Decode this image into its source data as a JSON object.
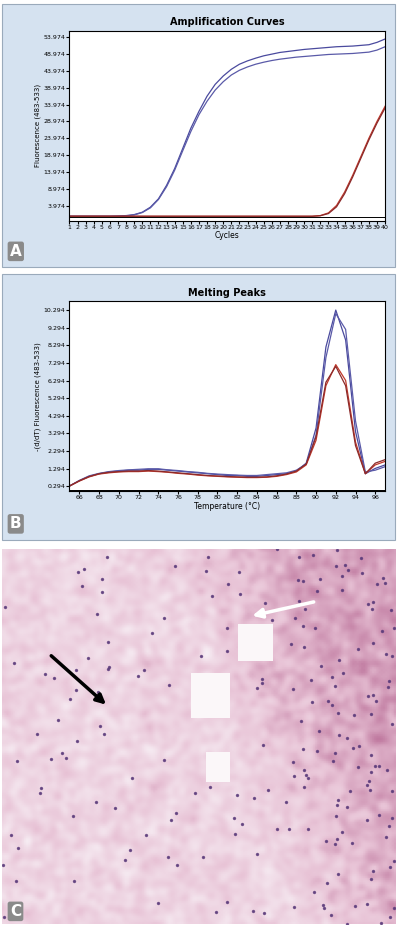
{
  "chart_data": [
    {
      "type": "line",
      "title": "Amplification Curves",
      "x_label": "Cycles",
      "y_label": "Fluorescence (483-533)",
      "annotations": [
        "A"
      ],
      "x": [
        1,
        2,
        3,
        4,
        5,
        6,
        7,
        8,
        9,
        10,
        11,
        12,
        13,
        14,
        15,
        16,
        17,
        18,
        19,
        20,
        21,
        22,
        23,
        24,
        25,
        26,
        27,
        28,
        29,
        30,
        31,
        32,
        33,
        34,
        35,
        36,
        37,
        38,
        39,
        40
      ],
      "xlim": [
        1,
        40
      ],
      "xticks": [
        1,
        2,
        3,
        4,
        5,
        6,
        7,
        8,
        9,
        10,
        11,
        12,
        13,
        14,
        15,
        16,
        17,
        18,
        19,
        20,
        21,
        22,
        23,
        24,
        25,
        26,
        27,
        28,
        29,
        30,
        31,
        32,
        33,
        34,
        35,
        36,
        37,
        38,
        39,
        40
      ],
      "ylim": [
        -0.5,
        56
      ],
      "yticks": [
        3.974,
        8.974,
        13.974,
        18.974,
        23.974,
        28.974,
        33.974,
        38.974,
        43.974,
        48.974,
        53.974
      ],
      "baseline": 0.6,
      "series": [
        {
          "color": "#4a4a9e",
          "values": [
            0.8,
            0.8,
            0.8,
            0.8,
            0.8,
            0.8,
            0.9,
            1.0,
            1.3,
            2.0,
            3.5,
            6,
            10,
            15,
            21,
            27,
            32,
            36.5,
            40,
            42.5,
            44.5,
            46,
            47,
            47.8,
            48.5,
            49,
            49.5,
            49.8,
            50.1,
            50.4,
            50.6,
            50.8,
            51,
            51.2,
            51.3,
            51.4,
            51.6,
            51.8,
            52.5,
            53.5
          ]
        },
        {
          "color": "#5a5aa8",
          "values": [
            0.8,
            0.8,
            0.8,
            0.8,
            0.8,
            0.8,
            0.8,
            0.9,
            1.2,
            1.9,
            3.3,
            5.8,
            9.6,
            14.5,
            20.3,
            26,
            31,
            35,
            38.3,
            40.8,
            42.8,
            44.2,
            45.2,
            46,
            46.6,
            47.1,
            47.5,
            47.8,
            48.1,
            48.3,
            48.5,
            48.7,
            48.9,
            49,
            49.1,
            49.2,
            49.4,
            49.6,
            50.2,
            51.2
          ]
        },
        {
          "color": "#c0392b",
          "values": [
            0.8,
            0.8,
            0.8,
            0.8,
            0.8,
            0.8,
            0.8,
            0.8,
            0.8,
            0.8,
            0.8,
            0.8,
            0.8,
            0.8,
            0.8,
            0.8,
            0.8,
            0.8,
            0.8,
            0.8,
            0.8,
            0.8,
            0.8,
            0.8,
            0.8,
            0.8,
            0.8,
            0.8,
            0.8,
            0.8,
            0.8,
            1.0,
            1.8,
            4,
            8,
            13,
            18.5,
            24,
            29,
            33.5
          ]
        },
        {
          "color": "#8b2a2a",
          "values": [
            0.8,
            0.8,
            0.8,
            0.8,
            0.8,
            0.8,
            0.8,
            0.8,
            0.8,
            0.8,
            0.8,
            0.8,
            0.8,
            0.8,
            0.8,
            0.8,
            0.8,
            0.8,
            0.8,
            0.8,
            0.8,
            0.8,
            0.8,
            0.8,
            0.8,
            0.8,
            0.8,
            0.8,
            0.8,
            0.8,
            0.8,
            0.95,
            1.6,
            3.6,
            7.5,
            12.5,
            18,
            23.5,
            28.5,
            33
          ]
        }
      ]
    },
    {
      "type": "line",
      "title": "Melting Peaks",
      "x_label": "Temperature (°C)",
      "y_label": "-(d/dT) Fluorescence (483-533)",
      "annotations": [
        "B"
      ],
      "x": [
        65,
        66,
        67,
        68,
        69,
        70,
        71,
        72,
        73,
        74,
        75,
        76,
        77,
        78,
        79,
        80,
        81,
        82,
        83,
        84,
        85,
        86,
        87,
        88,
        89,
        90,
        91,
        92,
        93,
        94,
        95,
        96,
        97
      ],
      "xlim": [
        65,
        97
      ],
      "xticks": [
        66,
        68,
        70,
        72,
        74,
        76,
        78,
        80,
        82,
        84,
        86,
        88,
        90,
        92,
        94,
        96
      ],
      "ylim": [
        0,
        10.8
      ],
      "yticks": [
        0.294,
        1.294,
        2.294,
        3.294,
        4.294,
        5.294,
        6.294,
        7.294,
        8.294,
        9.294,
        10.294
      ],
      "baseline": 0.05,
      "series": [
        {
          "color": "#4a4a9e",
          "values": [
            0.3,
            0.6,
            0.85,
            1.0,
            1.1,
            1.15,
            1.2,
            1.2,
            1.25,
            1.25,
            1.2,
            1.15,
            1.1,
            1.05,
            1.0,
            0.95,
            0.9,
            0.9,
            0.85,
            0.85,
            0.9,
            0.95,
            1.0,
            1.15,
            1.6,
            3.6,
            8.2,
            10.3,
            8.6,
            3.4,
            1.0,
            1.3,
            1.5
          ]
        },
        {
          "color": "#5a5aa8",
          "values": [
            0.3,
            0.62,
            0.88,
            1.02,
            1.12,
            1.18,
            1.22,
            1.25,
            1.28,
            1.28,
            1.22,
            1.18,
            1.12,
            1.08,
            1.02,
            0.98,
            0.95,
            0.92,
            0.9,
            0.9,
            0.95,
            1.0,
            1.05,
            1.2,
            1.55,
            3.2,
            7.6,
            10.1,
            9.2,
            4.0,
            1.1,
            1.2,
            1.4
          ]
        },
        {
          "color": "#c0392b",
          "values": [
            0.3,
            0.58,
            0.82,
            0.98,
            1.05,
            1.1,
            1.12,
            1.12,
            1.15,
            1.12,
            1.08,
            1.02,
            0.98,
            0.92,
            0.88,
            0.85,
            0.82,
            0.8,
            0.78,
            0.78,
            0.8,
            0.85,
            0.95,
            1.1,
            1.5,
            2.9,
            6.0,
            7.2,
            6.3,
            2.8,
            1.0,
            1.5,
            1.7
          ]
        },
        {
          "color": "#8b2a2a",
          "values": [
            0.3,
            0.6,
            0.84,
            1.0,
            1.08,
            1.12,
            1.15,
            1.15,
            1.18,
            1.15,
            1.1,
            1.05,
            1.0,
            0.95,
            0.9,
            0.87,
            0.84,
            0.82,
            0.8,
            0.8,
            0.82,
            0.88,
            0.98,
            1.15,
            1.55,
            3.1,
            6.2,
            7.1,
            6.0,
            2.6,
            1.0,
            1.6,
            1.8
          ]
        }
      ]
    }
  ],
  "image_panel": {
    "label": "C"
  }
}
